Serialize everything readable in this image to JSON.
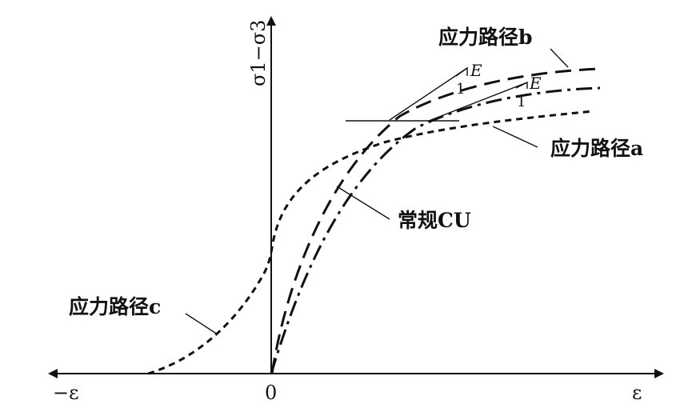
{
  "axes": {
    "y_label": "σ1−σ3",
    "origin_label": "0",
    "x_pos_label": "ε",
    "x_neg_label": "−ε"
  },
  "labels": {
    "path_a": "应力路径a",
    "path_b": "应力路径b",
    "path_c": "应力路径c",
    "conventional": "常规CU"
  },
  "slope_marks": {
    "upper_e": "E",
    "upper_one": "1",
    "lower_e": "E",
    "lower_one": "1"
  },
  "line_styles": {
    "path_a": "short-dashed",
    "path_b": "long-dashed",
    "path_c": "short-dashed",
    "conventional": "dash-dot"
  }
}
